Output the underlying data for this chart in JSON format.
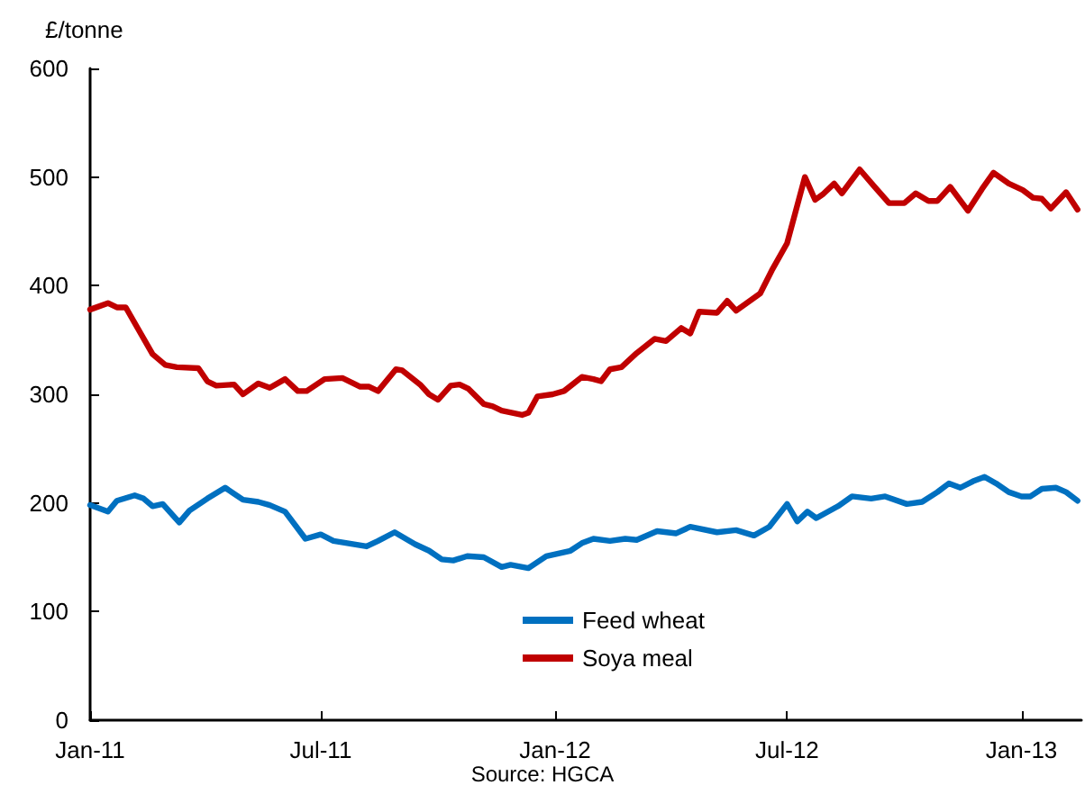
{
  "chart_data": {
    "type": "line",
    "ylabel": "£/tonne",
    "annotations": [
      "Source: HGCA"
    ],
    "xlim": [
      "2011-01-01",
      "2013-02-17"
    ],
    "xticks": [
      {
        "value": "2011-01-01",
        "label": "Jan-11"
      },
      {
        "value": "2011-07-01",
        "label": "Jul-11"
      },
      {
        "value": "2012-01-01",
        "label": "Jan-12"
      },
      {
        "value": "2012-07-01",
        "label": "Jul-12"
      },
      {
        "value": "2013-01-01",
        "label": "Jan-13"
      }
    ],
    "ylim": [
      0,
      600
    ],
    "yticks": [
      0,
      100,
      200,
      300,
      400,
      500,
      600
    ],
    "grid": false,
    "legend": "bottom",
    "series": [
      {
        "name": "Feed wheat",
        "color": "#0070c0",
        "x": [
          "2011-01-01",
          "2011-01-15",
          "2011-01-22",
          "2011-02-05",
          "2011-02-12",
          "2011-02-19",
          "2011-02-27",
          "2011-03-12",
          "2011-03-20",
          "2011-04-03",
          "2011-04-17",
          "2011-05-01",
          "2011-05-13",
          "2011-05-22",
          "2011-06-03",
          "2011-06-19",
          "2011-07-01",
          "2011-07-11",
          "2011-08-06",
          "2011-08-15",
          "2011-08-28",
          "2011-09-13",
          "2011-09-24",
          "2011-10-04",
          "2011-10-13",
          "2011-10-24",
          "2011-11-06",
          "2011-11-20",
          "2011-11-27",
          "2011-12-11",
          "2011-12-25",
          "2012-01-13",
          "2012-01-22",
          "2012-01-31",
          "2012-02-13",
          "2012-02-25",
          "2012-03-05",
          "2012-03-21",
          "2012-04-05",
          "2012-04-16",
          "2012-05-07",
          "2012-05-22",
          "2012-06-05",
          "2012-06-17",
          "2012-07-01",
          "2012-07-09",
          "2012-07-17",
          "2012-07-24",
          "2012-08-10",
          "2012-08-21",
          "2012-09-05",
          "2012-09-16",
          "2012-10-03",
          "2012-10-15",
          "2012-10-27",
          "2012-11-05",
          "2012-11-14",
          "2012-11-24",
          "2012-12-03",
          "2012-12-12",
          "2012-12-22",
          "2013-01-01",
          "2013-01-08",
          "2013-01-17",
          "2013-01-28",
          "2013-02-05",
          "2013-02-14"
        ],
        "values": [
          198,
          192,
          202,
          207,
          204,
          197,
          199,
          182,
          193,
          204,
          214,
          203,
          201,
          198,
          192,
          167,
          171,
          165,
          160,
          165,
          173,
          162,
          156,
          148,
          147,
          151,
          150,
          141,
          143,
          140,
          151,
          156,
          163,
          167,
          165,
          167,
          166,
          174,
          172,
          178,
          173,
          175,
          170,
          178,
          199,
          183,
          192,
          186,
          197,
          206,
          204,
          206,
          199,
          201,
          210,
          218,
          214,
          220,
          224,
          218,
          210,
          206,
          206,
          213,
          214,
          210,
          202
        ]
      },
      {
        "name": "Soya meal",
        "color": "#c00000",
        "x": [
          "2011-01-01",
          "2011-01-15",
          "2011-01-22",
          "2011-01-29",
          "2011-02-19",
          "2011-03-01",
          "2011-03-10",
          "2011-03-27",
          "2011-04-03",
          "2011-04-10",
          "2011-04-24",
          "2011-05-01",
          "2011-05-13",
          "2011-05-22",
          "2011-06-03",
          "2011-06-13",
          "2011-06-20",
          "2011-07-04",
          "2011-07-18",
          "2011-08-01",
          "2011-08-08",
          "2011-08-15",
          "2011-08-29",
          "2011-09-03",
          "2011-09-17",
          "2011-09-24",
          "2011-10-01",
          "2011-10-11",
          "2011-10-18",
          "2011-10-25",
          "2011-11-06",
          "2011-11-13",
          "2011-11-20",
          "2011-12-06",
          "2011-12-11",
          "2011-12-18",
          "2011-12-30",
          "2012-01-08",
          "2012-01-22",
          "2012-01-31",
          "2012-02-06",
          "2012-02-13",
          "2012-02-22",
          "2012-03-05",
          "2012-03-19",
          "2012-03-28",
          "2012-04-09",
          "2012-04-16",
          "2012-04-23",
          "2012-05-07",
          "2012-05-15",
          "2012-05-22",
          "2012-06-10",
          "2012-06-19",
          "2012-07-01",
          "2012-07-15",
          "2012-07-23",
          "2012-07-29",
          "2012-08-07",
          "2012-08-13",
          "2012-08-27",
          "2012-09-07",
          "2012-09-19",
          "2012-10-01",
          "2012-10-10",
          "2012-10-20",
          "2012-10-27",
          "2012-11-06",
          "2012-11-20",
          "2012-12-01",
          "2012-12-10",
          "2012-12-22",
          "2013-01-02",
          "2013-01-10",
          "2013-01-17",
          "2013-01-24",
          "2013-02-05",
          "2013-02-14"
        ],
        "values": [
          378,
          384,
          380,
          380,
          337,
          327,
          325,
          324,
          312,
          308,
          309,
          300,
          310,
          306,
          314,
          303,
          303,
          314,
          315,
          307,
          307,
          303,
          323,
          322,
          309,
          300,
          295,
          308,
          309,
          305,
          291,
          289,
          285,
          281,
          283,
          298,
          300,
          303,
          316,
          314,
          312,
          323,
          325,
          338,
          351,
          349,
          361,
          356,
          376,
          375,
          386,
          377,
          393,
          414,
          439,
          500,
          479,
          484,
          494,
          485,
          507,
          492,
          476,
          476,
          485,
          478,
          478,
          491,
          469,
          489,
          504,
          494,
          488,
          481,
          480,
          471,
          486,
          470
        ]
      }
    ]
  }
}
